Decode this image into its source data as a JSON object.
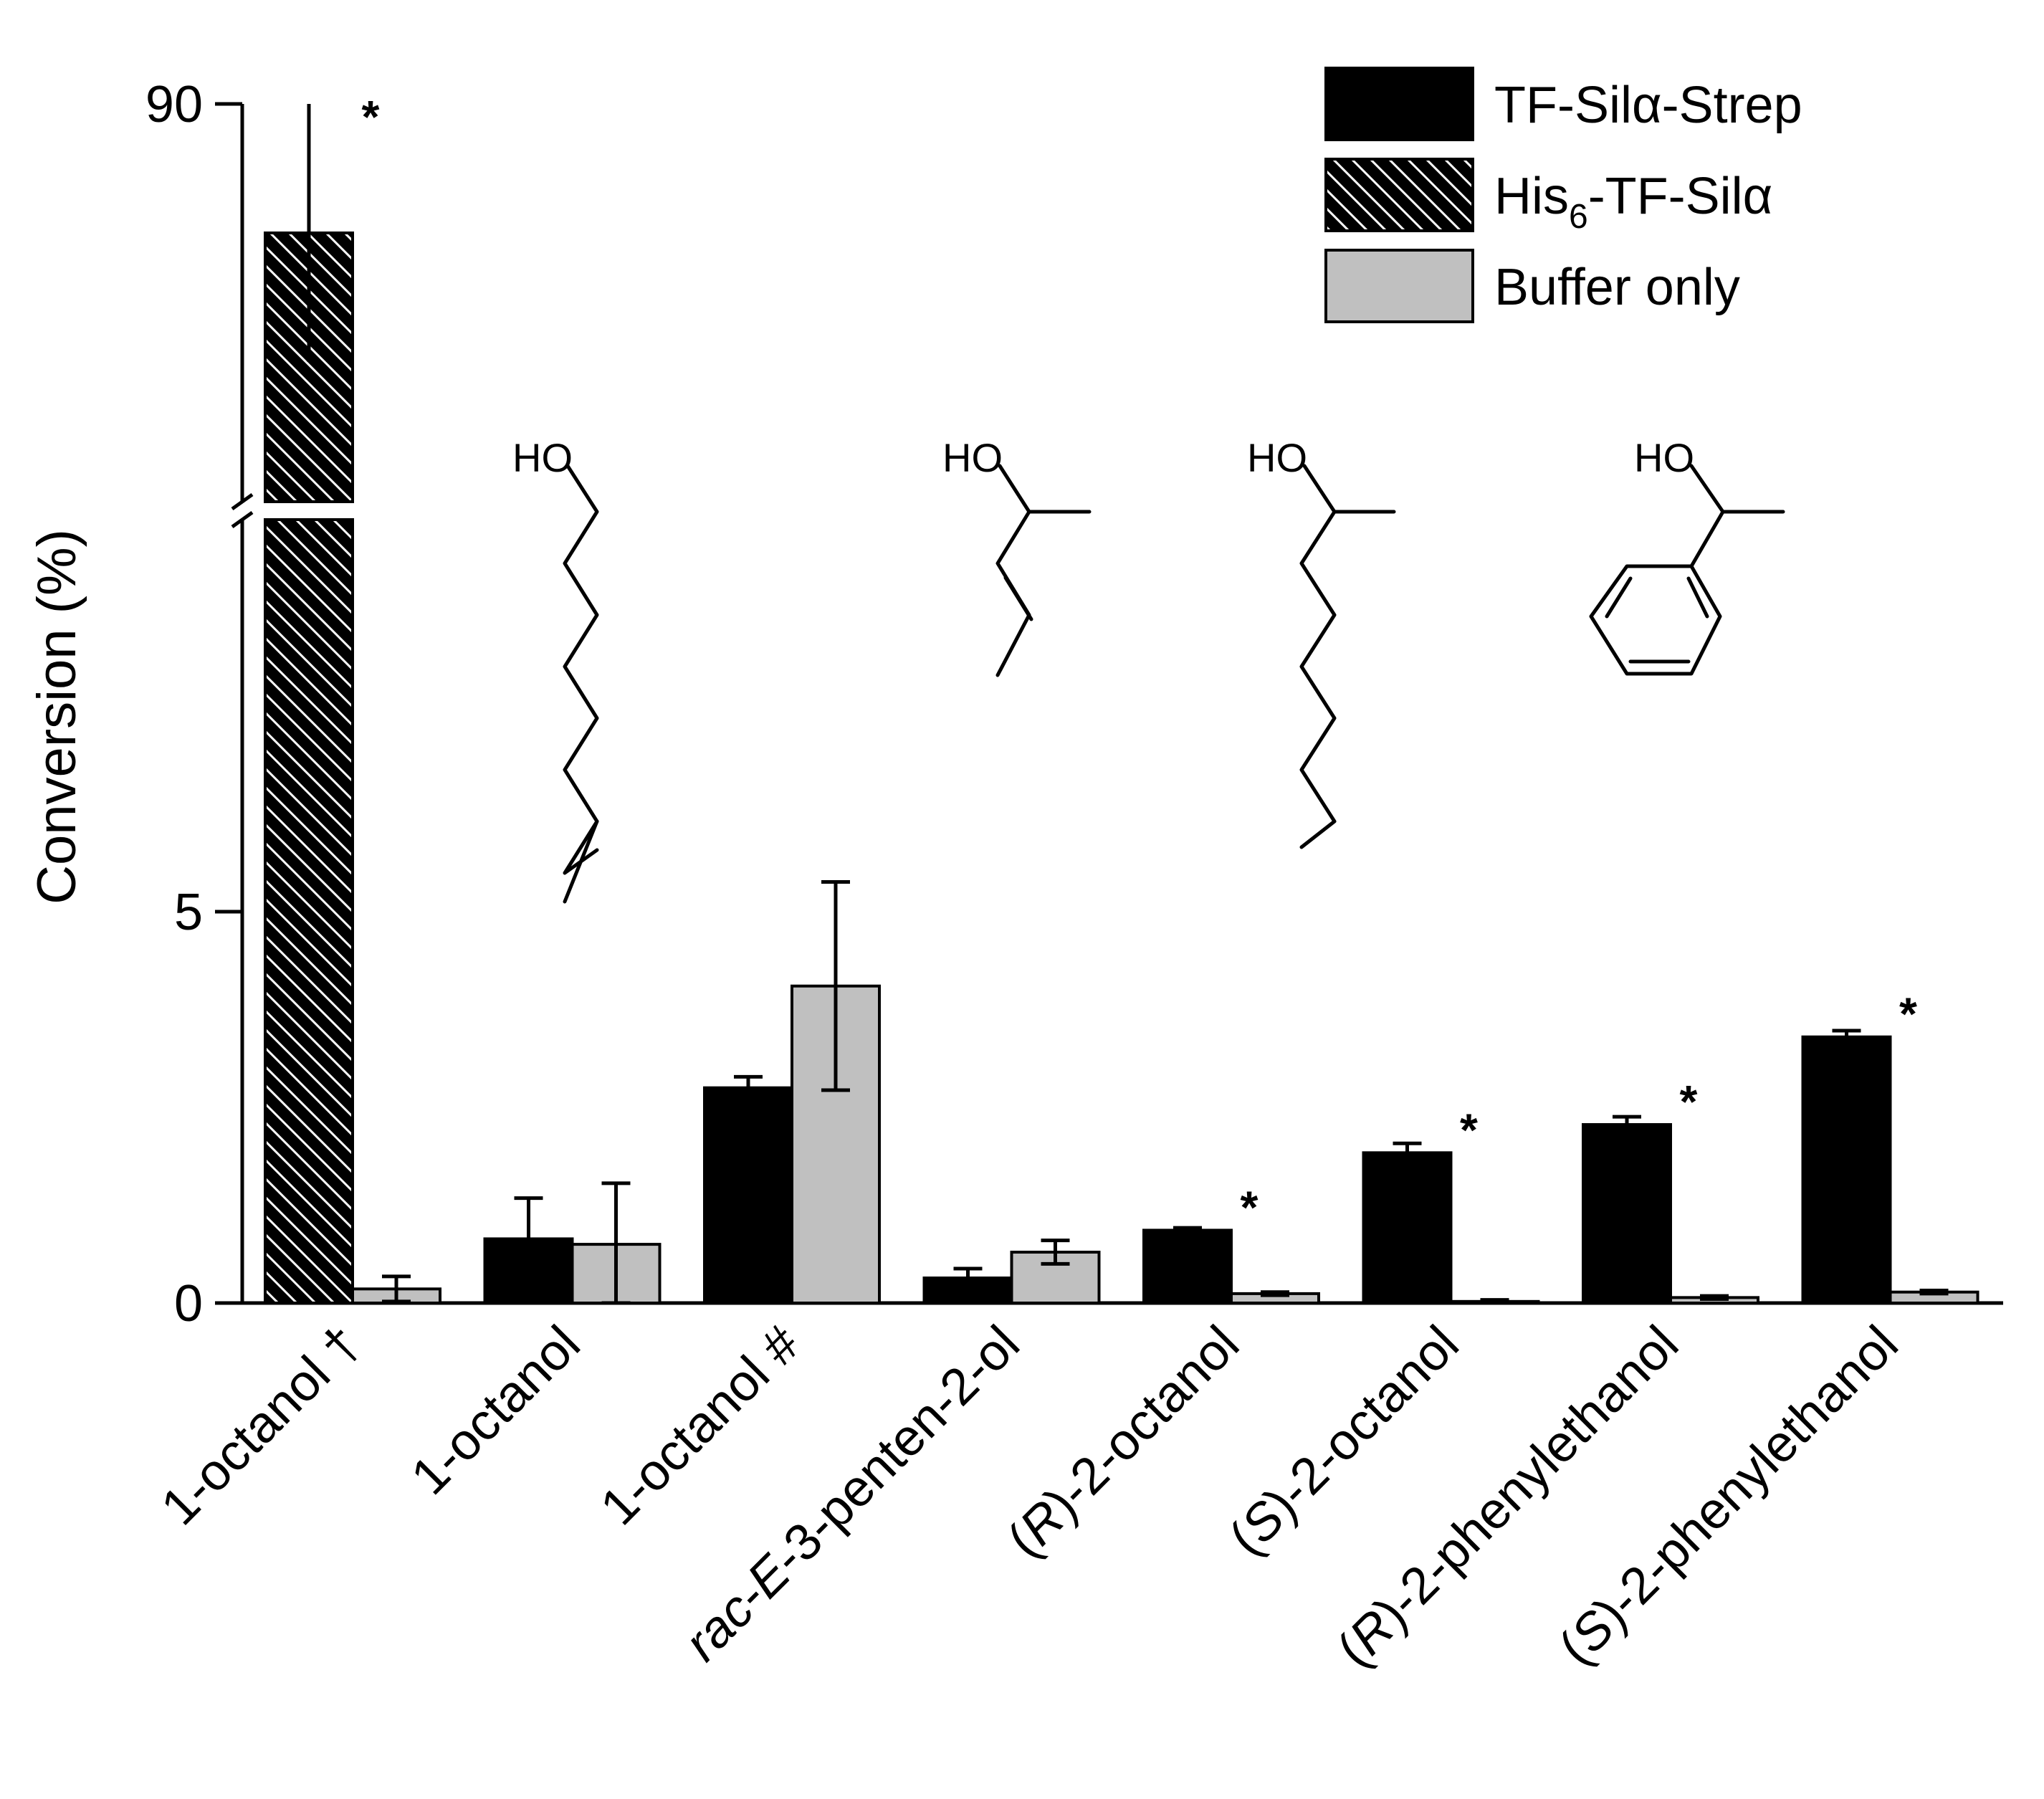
{
  "chart_data": {
    "type": "bar",
    "ylabel": "Conversion (%)",
    "y_axis": {
      "ticks": [
        "0",
        "5",
        "90"
      ],
      "broken": true,
      "lower_range": [
        0,
        6.5
      ],
      "upper_tick": "90"
    },
    "categories": [
      [
        {
          "t": "1-octanol †",
          "i": false
        }
      ],
      [
        {
          "t": "1-octanol",
          "i": false
        }
      ],
      [
        {
          "t": "1-octanol #",
          "i": false
        }
      ],
      [
        {
          "t": "rac",
          "i": true
        },
        {
          "t": "-",
          "i": false
        },
        {
          "t": "E",
          "i": true
        },
        {
          "t": "-3-penten-2-ol",
          "i": false
        }
      ],
      [
        {
          "t": "(",
          "i": false
        },
        {
          "t": "R",
          "i": true
        },
        {
          "t": ")-2-octanol",
          "i": false
        }
      ],
      [
        {
          "t": "(",
          "i": false
        },
        {
          "t": "S",
          "i": true
        },
        {
          "t": ")-2-octanol",
          "i": false
        }
      ],
      [
        {
          "t": "(",
          "i": false
        },
        {
          "t": "R",
          "i": true
        },
        {
          "t": ")-2-phenylethanol",
          "i": false
        }
      ],
      [
        {
          "t": "(",
          "i": false
        },
        {
          "t": "S",
          "i": true
        },
        {
          "t": ")-2-phenylethanol",
          "i": false
        }
      ]
    ],
    "series": [
      {
        "name": "TF-Silα-Strep",
        "legend": [
          {
            "t": "TF-Silα-Strep",
            "sub": false
          }
        ],
        "fill": "#000000",
        "pattern": "solid",
        "values": [
          null,
          0.82,
          2.75,
          0.32,
          0.93,
          1.92,
          2.28,
          3.4
        ],
        "errors": [
          null,
          0.52,
          0.14,
          0.12,
          0.03,
          0.12,
          0.1,
          0.08
        ]
      },
      {
        "name": "His6-TF-Silα",
        "legend": [
          {
            "t": "His",
            "sub": false
          },
          {
            "t": "6",
            "sub": true
          },
          {
            "t": "-TF-Silα",
            "sub": false
          }
        ],
        "fill": "#000000",
        "pattern": "hatch",
        "values": [
          85,
          null,
          null,
          null,
          null,
          null,
          null,
          null
        ],
        "errors": [
          5,
          null,
          null,
          null,
          null,
          null,
          null,
          null
        ]
      },
      {
        "name": "Buffer only",
        "legend": [
          {
            "t": "Buffer only",
            "sub": false
          }
        ],
        "fill": "#c0c0c0",
        "pattern": "solid",
        "values": [
          0.18,
          0.75,
          4.05,
          0.65,
          0.12,
          0.02,
          0.07,
          0.14
        ],
        "errors": [
          0.16,
          0.78,
          1.33,
          0.15,
          0.02,
          0.02,
          0.02,
          0.02
        ]
      }
    ],
    "significance_markers": [
      "*",
      "",
      "",
      "",
      "*",
      "*",
      "*",
      "*"
    ],
    "structure_labels": [
      "HO",
      "HO",
      "HO",
      "HO"
    ]
  }
}
